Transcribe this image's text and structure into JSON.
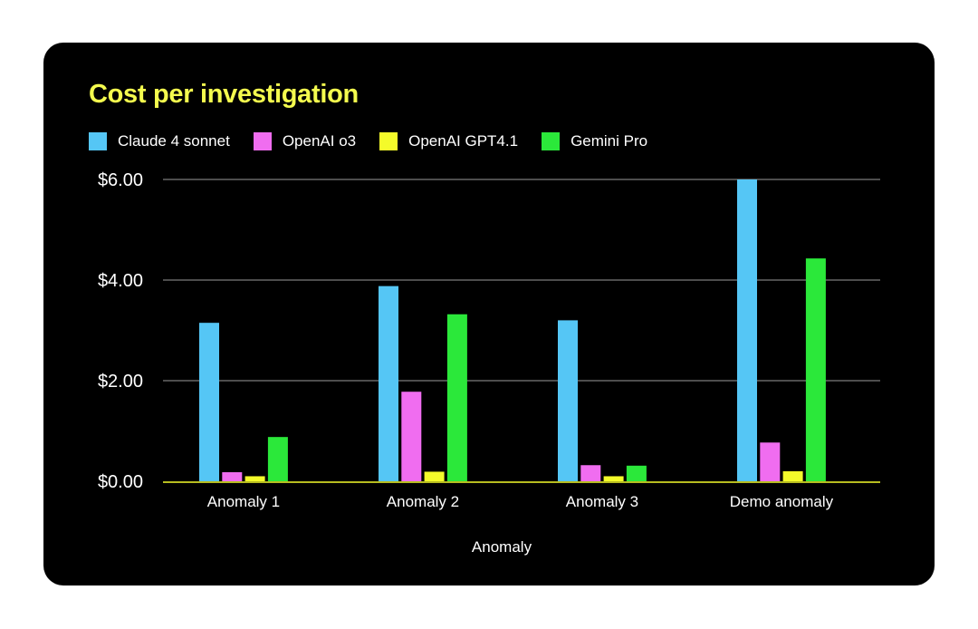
{
  "chart_data": {
    "type": "bar",
    "title": "Cost per investigation",
    "xlabel": "Anomaly",
    "ylabel": "",
    "categories": [
      "Anomaly 1",
      "Anomaly 2",
      "Anomaly 3",
      "Demo anomaly"
    ],
    "series": [
      {
        "name": "Claude 4 sonnet",
        "color": "#55c6f5",
        "values": [
          3.15,
          3.88,
          3.2,
          6.0
        ]
      },
      {
        "name": "OpenAI o3",
        "color": "#f06df0",
        "values": [
          0.18,
          1.78,
          0.32,
          0.77
        ]
      },
      {
        "name": "OpenAI GPT4.1",
        "color": "#f4fb2a",
        "values": [
          0.1,
          0.19,
          0.1,
          0.2
        ]
      },
      {
        "name": "Gemini Pro",
        "color": "#2be83a",
        "values": [
          0.88,
          3.32,
          0.31,
          4.43
        ]
      }
    ],
    "ylim": [
      0,
      6
    ],
    "yticks": [
      0,
      2,
      4,
      6
    ],
    "ytick_labels": [
      "$0.00",
      "$2.00",
      "$4.00",
      "$6.00"
    ],
    "grid": true,
    "legend_position": "top-left"
  }
}
